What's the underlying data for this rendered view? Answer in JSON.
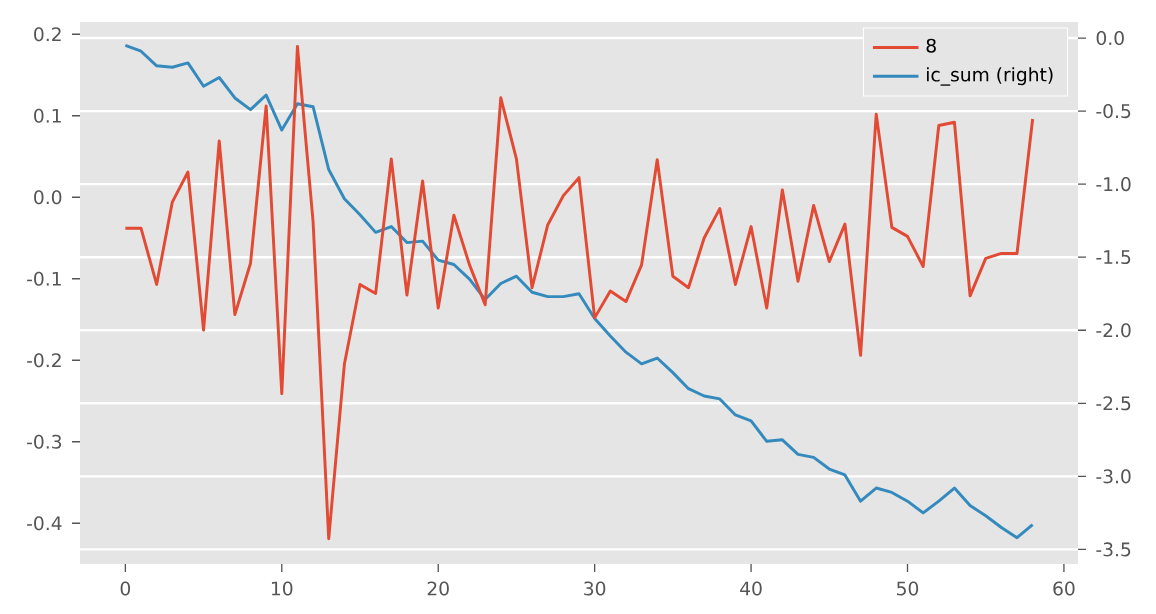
{
  "chart_data": {
    "type": "line",
    "x": [
      0,
      1,
      2,
      3,
      4,
      5,
      6,
      7,
      8,
      9,
      10,
      11,
      12,
      13,
      14,
      15,
      16,
      17,
      18,
      19,
      20,
      21,
      22,
      23,
      24,
      25,
      26,
      27,
      28,
      29,
      30,
      31,
      32,
      33,
      34,
      35,
      36,
      37,
      38,
      39,
      40,
      41,
      42,
      43,
      44,
      45,
      46,
      47,
      48,
      49,
      50,
      51,
      52,
      53,
      54,
      55,
      56,
      57,
      58
    ],
    "series": [
      {
        "name": "8",
        "color": "#e24a33",
        "values": [
          -0.038,
          -0.038,
          -0.107,
          -0.006,
          0.031,
          -0.163,
          0.069,
          -0.144,
          -0.081,
          0.112,
          -0.241,
          0.185,
          -0.03,
          -0.419,
          -0.205,
          -0.107,
          -0.118,
          0.047,
          -0.12,
          0.02,
          -0.136,
          -0.022,
          -0.083,
          -0.132,
          0.122,
          0.047,
          -0.111,
          -0.034,
          0.002,
          0.024,
          -0.148,
          -0.115,
          -0.128,
          -0.083,
          0.046,
          -0.097,
          -0.111,
          -0.05,
          -0.014,
          -0.107,
          -0.036,
          -0.136,
          0.009,
          -0.103,
          -0.01,
          -0.079,
          -0.033,
          -0.194,
          0.102,
          -0.037,
          -0.048,
          -0.085,
          0.088,
          0.092,
          -0.121,
          -0.075,
          -0.069,
          -0.069,
          0.096
        ]
      },
      {
        "name": "ic_sum (right)",
        "color": "#348abd",
        "axis": "y2",
        "values": [
          -0.05,
          -0.09,
          -0.19,
          -0.2,
          -0.17,
          -0.33,
          -0.27,
          -0.41,
          -0.49,
          -0.39,
          -0.63,
          -0.45,
          -0.47,
          -0.9,
          -1.1,
          -1.21,
          -1.33,
          -1.29,
          -1.4,
          -1.39,
          -1.52,
          -1.55,
          -1.65,
          -1.79,
          -1.68,
          -1.63,
          -1.74,
          -1.77,
          -1.77,
          -1.75,
          -1.92,
          -2.04,
          -2.15,
          -2.23,
          -2.19,
          -2.29,
          -2.4,
          -2.45,
          -2.47,
          -2.58,
          -2.62,
          -2.76,
          -2.75,
          -2.85,
          -2.87,
          -2.95,
          -2.99,
          -3.17,
          -3.08,
          -3.11,
          -3.17,
          -3.25,
          -3.17,
          -3.08,
          -3.2,
          -3.27,
          -3.35,
          -3.42,
          -3.33
        ]
      }
    ],
    "xlim": [
      -2.9,
      60.9
    ],
    "xticks": [
      0,
      10,
      20,
      30,
      40,
      50,
      60
    ],
    "ylim": [
      -0.45,
      0.215
    ],
    "yticks": [
      -0.4,
      -0.3,
      -0.2,
      -0.1,
      {
        "value": 0,
        "label": "0.0"
      },
      0.1,
      0.2
    ],
    "y2lim": [
      -3.6,
      0.11
    ],
    "y2ticks": [
      -3.5,
      {
        "value": -3,
        "label": "-3.0"
      },
      -2.5,
      {
        "value": -2,
        "label": "-2.0"
      },
      -1.5,
      {
        "value": -1,
        "label": "-1.0"
      },
      -0.5,
      {
        "value": 0,
        "label": "0.0"
      }
    ],
    "grid": "y",
    "legend": "top right",
    "marker": "none",
    "line_style": "solid"
  }
}
